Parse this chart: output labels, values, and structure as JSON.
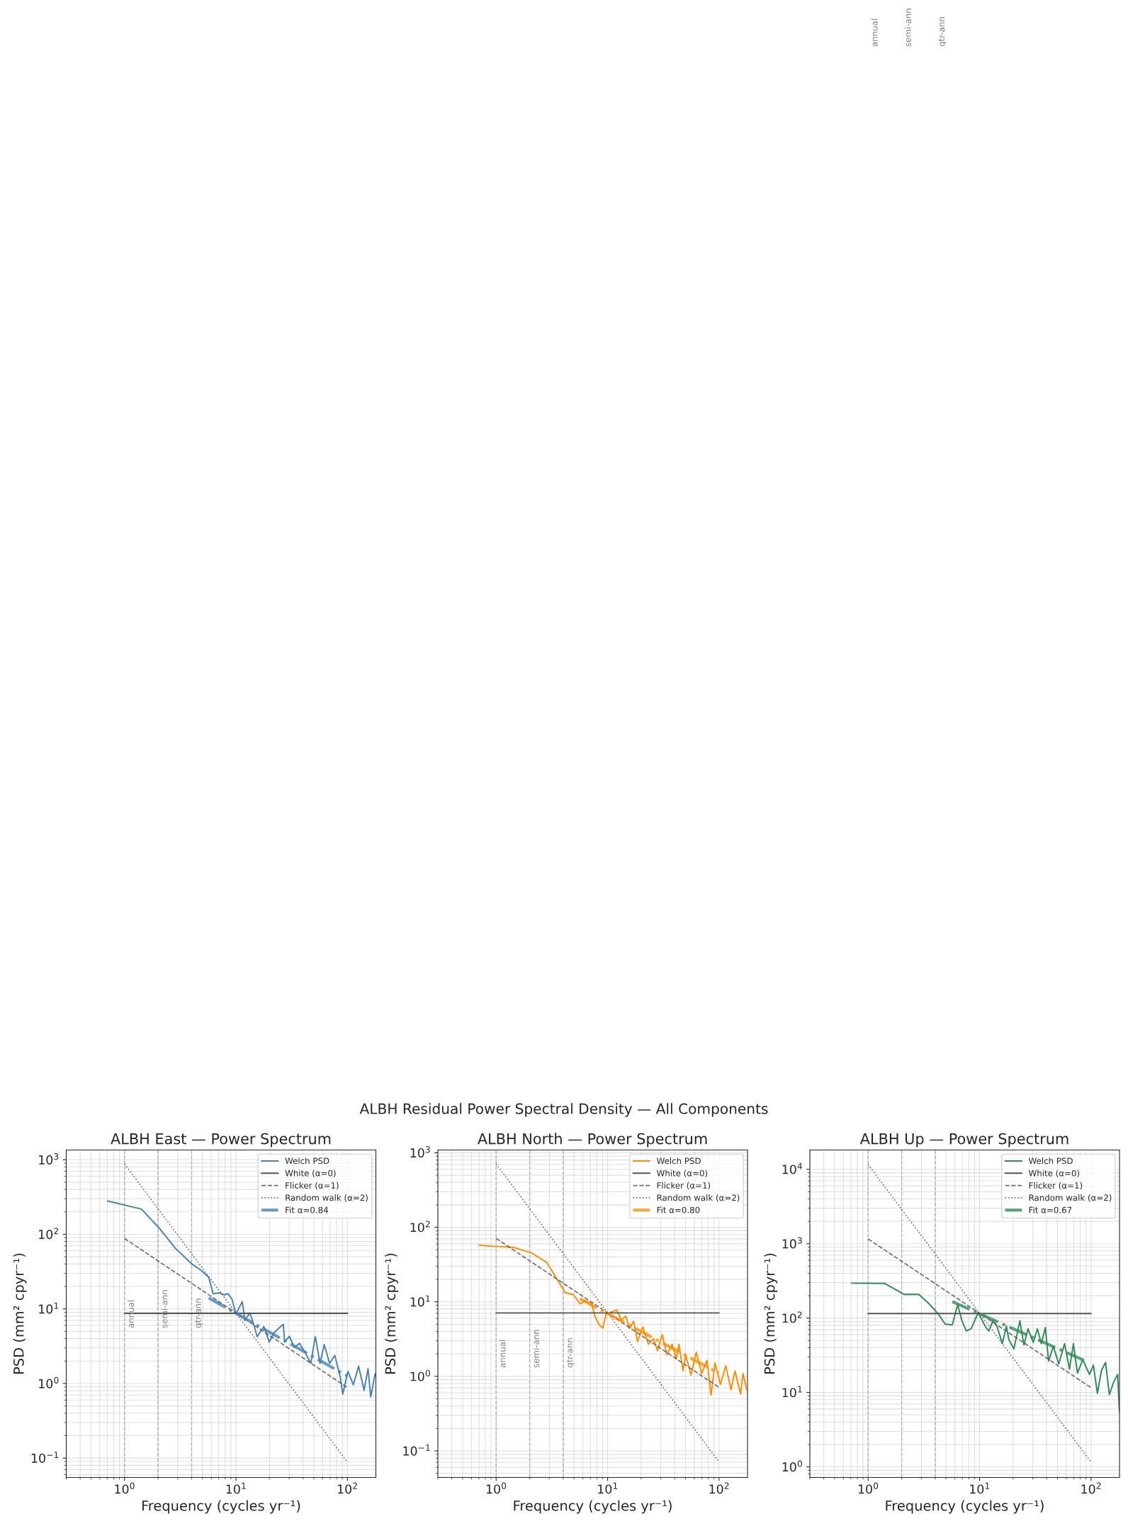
{
  "chart_data": [
    {
      "type": "line",
      "title": "ALBH East — Power Spectrum",
      "xlabel": "Frequency (cycles yr⁻¹)",
      "ylabel": "PSD (mm² cpyr⁻¹)",
      "log": "xy",
      "grid": true,
      "legend": "top right",
      "xlim": [
        0.3,
        180
      ],
      "ylim": [
        0.055,
        1350
      ],
      "xticks": [
        {
          "value": 1,
          "label": "10$^{0}$"
        },
        {
          "value": 10,
          "label": "10$^{1}$"
        },
        {
          "value": 100,
          "label": "10$^{2}$"
        }
      ],
      "yticks": [
        {
          "value": 0.1,
          "label": "10$^{−1}$"
        },
        {
          "value": 1,
          "label": "10$^{0}$"
        },
        {
          "value": 10,
          "label": "10$^{1}$"
        },
        {
          "value": 100,
          "label": "10$^{2}$"
        },
        {
          "value": 1000,
          "label": "10$^{3}$"
        }
      ],
      "ref_lines": [
        {
          "axis": "x",
          "value": 1,
          "color": "#999999",
          "line_style": "dashed"
        },
        {
          "axis": "x",
          "value": 2,
          "color": "#999999",
          "line_style": "dashed"
        },
        {
          "axis": "x",
          "value": 4,
          "color": "#999999",
          "line_style": "dashed"
        }
      ],
      "annotations": [
        "ALBH Residual Power Spectral Density — All Components",
        {
          "text": "annual",
          "x": 1,
          "y": 5.5
        },
        {
          "text": "semi-ann",
          "x": 2,
          "y": 5.5
        },
        {
          "text": "qtr-ann",
          "x": 4,
          "y": 5.5
        }
      ],
      "series": [
        {
          "name": "Welch PSD",
          "color": "#4682b4",
          "line_style": "solid",
          "x": [
            0.706,
            1.42,
            2.09,
            2.84,
            4.02,
            4.93,
            5.7,
            6.24,
            7.17,
            7.8,
            8.45,
            9.2,
            10,
            11.4,
            12,
            13.3,
            14.3,
            15.5,
            17.8,
            19.9,
            22,
            24.2,
            26.6,
            27.3,
            30.1,
            33.5,
            37.1,
            41.9,
            46.9,
            51.5,
            56.8,
            61.9,
            69.2,
            77,
            86.1,
            90.8,
            101,
            113,
            126,
            141,
            153,
            162,
            177
          ],
          "values": [
            279,
            218,
            117,
            65.6,
            40,
            32.4,
            26.4,
            16,
            16.4,
            15.4,
            16,
            13.6,
            8.6,
            12.5,
            7,
            8.8,
            6.5,
            4.25,
            5.8,
            3.6,
            4.8,
            5.5,
            6.2,
            3.6,
            4.3,
            3.05,
            3.46,
            2.59,
            1.86,
            4.26,
            1.86,
            3.33,
            1.86,
            2.38,
            1.23,
            0.72,
            1.45,
            0.96,
            1.71,
            0.81,
            1.58,
            0.66,
            1.34
          ]
        },
        {
          "name": "White (α=0)",
          "color": "#555555",
          "line_style": "solid",
          "x": [
            1,
            100
          ],
          "values": [
            8.7,
            8.7
          ]
        },
        {
          "name": "Flicker (α=1)",
          "color": "#555555",
          "line_style": "dashed",
          "x": [
            1,
            100
          ],
          "values": [
            88,
            0.88
          ]
        },
        {
          "name": "Random walk (α=2)",
          "color": "#555555",
          "line_style": "dotted",
          "x": [
            1,
            100
          ],
          "values": [
            880,
            0.088
          ]
        },
        {
          "name": "Fit α=0.84",
          "color": "#4682b4",
          "line_style": "dashdot",
          "x": [
            5.7,
            100
          ],
          "values": [
            14,
            1.26
          ]
        }
      ]
    },
    {
      "type": "line",
      "title": "ALBH North — Power Spectrum",
      "xlabel": "Frequency (cycles yr⁻¹)",
      "ylabel": "PSD (mm² cpyr⁻¹)",
      "log": "xy",
      "grid": true,
      "legend": "top right",
      "xlim": [
        0.3,
        180
      ],
      "ylim": [
        0.044,
        1090
      ],
      "xticks": [
        {
          "value": 1,
          "label": "10$^{0}$"
        },
        {
          "value": 10,
          "label": "10$^{1}$"
        },
        {
          "value": 100,
          "label": "10$^{2}$"
        }
      ],
      "yticks": [
        {
          "value": 0.1,
          "label": "10$^{−1}$"
        },
        {
          "value": 1,
          "label": "10$^{0}$"
        },
        {
          "value": 10,
          "label": "10$^{1}$"
        },
        {
          "value": 100,
          "label": "10$^{2}$"
        },
        {
          "value": 1000,
          "label": "10$^{3}$"
        }
      ],
      "ref_lines": [
        {
          "axis": "x",
          "value": 1,
          "color": "#999999",
          "line_style": "dashed"
        },
        {
          "axis": "x",
          "value": 2,
          "color": "#999999",
          "line_style": "dashed"
        },
        {
          "axis": "x",
          "value": 4,
          "color": "#999999",
          "line_style": "dashed"
        }
      ],
      "annotations": [
        {
          "text": "annual",
          "x": 1,
          "y": 1.3
        },
        {
          "text": "semi-ann",
          "x": 2,
          "y": 1.3
        },
        {
          "text": "qtr-ann",
          "x": 4,
          "y": 1.3
        }
      ],
      "series": [
        {
          "name": "Welch PSD",
          "color": "#ff8c00",
          "line_style": "solid",
          "x": [
            0.706,
            1,
            1.42,
            2.09,
            2.84,
            3.54,
            4.17,
            4.93,
            5.66,
            6.32,
            7.18,
            7.76,
            8.47,
            9.05,
            9.68,
            10.7,
            12.1,
            13.3,
            14.6,
            15.7,
            17.1,
            18.6,
            20.7,
            23.2,
            25.8,
            28.1,
            30.9,
            34.1,
            38,
            41.3,
            43.7,
            47.5,
            50.2,
            56,
            62.5,
            69.8,
            78,
            84.7,
            92,
            103,
            115,
            128,
            139,
            156,
            164,
            177
          ],
          "values": [
            57.4,
            55.3,
            54,
            45.2,
            33.8,
            19.8,
            13.3,
            12.5,
            9.36,
            10.3,
            9.36,
            6.2,
            4.82,
            4.44,
            6.83,
            7.3,
            7.8,
            5.7,
            6.45,
            4.37,
            5.5,
            2.93,
            4.62,
            2.7,
            3.19,
            2.2,
            3.61,
            1.94,
            2.7,
            1.71,
            2.7,
            1.18,
            1.94,
            1.04,
            2.11,
            1.09,
            1.64,
            0.56,
            1.51,
            0.78,
            1.39,
            0.66,
            1.18,
            0.58,
            1.09,
            0.66
          ]
        },
        {
          "name": "White (α=0)",
          "color": "#555555",
          "line_style": "solid",
          "x": [
            1,
            100
          ],
          "values": [
            7.1,
            7.1
          ]
        },
        {
          "name": "Flicker (α=1)",
          "color": "#555555",
          "line_style": "dashed",
          "x": [
            1,
            100
          ],
          "values": [
            71,
            0.71
          ]
        },
        {
          "name": "Random walk (α=2)",
          "color": "#555555",
          "line_style": "dotted",
          "x": [
            1,
            100
          ],
          "values": [
            710,
            0.071
          ]
        },
        {
          "name": "Fit α=0.80",
          "color": "#ff8c00",
          "line_style": "dashdot",
          "x": [
            5.66,
            100
          ],
          "values": [
            11,
            1.1
          ]
        }
      ]
    },
    {
      "type": "line",
      "title": "ALBH Up — Power Spectrum",
      "xlabel": "Frequency (cycles yr⁻¹)",
      "ylabel": "PSD (mm² cpyr⁻¹)",
      "log": "xy",
      "grid": true,
      "legend": "top right",
      "xlim": [
        0.3,
        180
      ],
      "ylim": [
        0.72,
        18200
      ],
      "xticks": [
        {
          "value": 1,
          "label": "10$^{0}$"
        },
        {
          "value": 10,
          "label": "10$^{1}$"
        },
        {
          "value": 100,
          "label": "10$^{2}$"
        }
      ],
      "yticks": [
        {
          "value": 1,
          "label": "10$^{0}$"
        },
        {
          "value": 10,
          "label": "10$^{1}$"
        },
        {
          "value": 100,
          "label": "10$^{2}$"
        },
        {
          "value": 1000,
          "label": "10$^{3}$"
        },
        {
          "value": 10000,
          "label": "10$^{4}$"
        }
      ],
      "ref_lines": [
        {
          "axis": "x",
          "value": 1,
          "color": "#999999",
          "line_style": "dashed"
        },
        {
          "axis": "x",
          "value": 2,
          "color": "#999999",
          "line_style": "dashed"
        },
        {
          "axis": "x",
          "value": 4,
          "color": "#999999",
          "line_style": "dashed"
        }
      ],
      "annotations": [
        "annual",
        "semi-ann",
        "qtr-ann"
      ],
      "series": [
        {
          "name": "Welch PSD",
          "color": "#2e8b57",
          "line_style": "solid",
          "x": [
            0.71,
            1.41,
            2.11,
            2.85,
            3.58,
            4.27,
            4.9,
            5.69,
            6.36,
            6.94,
            7.6,
            8.4,
            9.7,
            10.6,
            11.4,
            12.1,
            13.2,
            14.3,
            16,
            17.4,
            18.3,
            20.3,
            23,
            25,
            27.2,
            30.3,
            33,
            35.8,
            38.9,
            41.6,
            45.9,
            51.3,
            57.9,
            64,
            69.5,
            75.5,
            84.3,
            96.8,
            105,
            114,
            124,
            135,
            146,
            159,
            173,
            180
          ],
          "values": [
            295,
            292,
            208,
            208,
            152,
            113,
            83.3,
            81,
            152,
            92,
            67,
            72,
            118,
            92,
            74.8,
            67,
            92,
            78,
            45.4,
            78,
            51.4,
            38.5,
            92,
            43.6,
            71.7,
            47.1,
            71.7,
            45.4,
            74.8,
            26.4,
            41.8,
            24.3,
            45.4,
            20.6,
            45.4,
            18.2,
            27.6,
            17.5,
            23.3,
            9.75,
            19.8,
            25.3,
            9.36,
            13.6,
            17.5,
            5.45
          ]
        },
        {
          "name": "White (α=0)",
          "color": "#555555",
          "line_style": "solid",
          "x": [
            1,
            100
          ],
          "values": [
            115,
            115
          ]
        },
        {
          "name": "Flicker (α=1)",
          "color": "#555555",
          "line_style": "dashed",
          "x": [
            1,
            100
          ],
          "values": [
            1160,
            11.6
          ]
        },
        {
          "name": "Random walk (α=2)",
          "color": "#555555",
          "line_style": "dotted",
          "x": [
            1,
            100
          ],
          "values": [
            11600,
            1.16
          ]
        },
        {
          "name": "Fit α=0.67",
          "color": "#2e8b57",
          "line_style": "dashdot",
          "x": [
            5.69,
            89
          ],
          "values": [
            167,
            26.5
          ]
        }
      ]
    }
  ]
}
